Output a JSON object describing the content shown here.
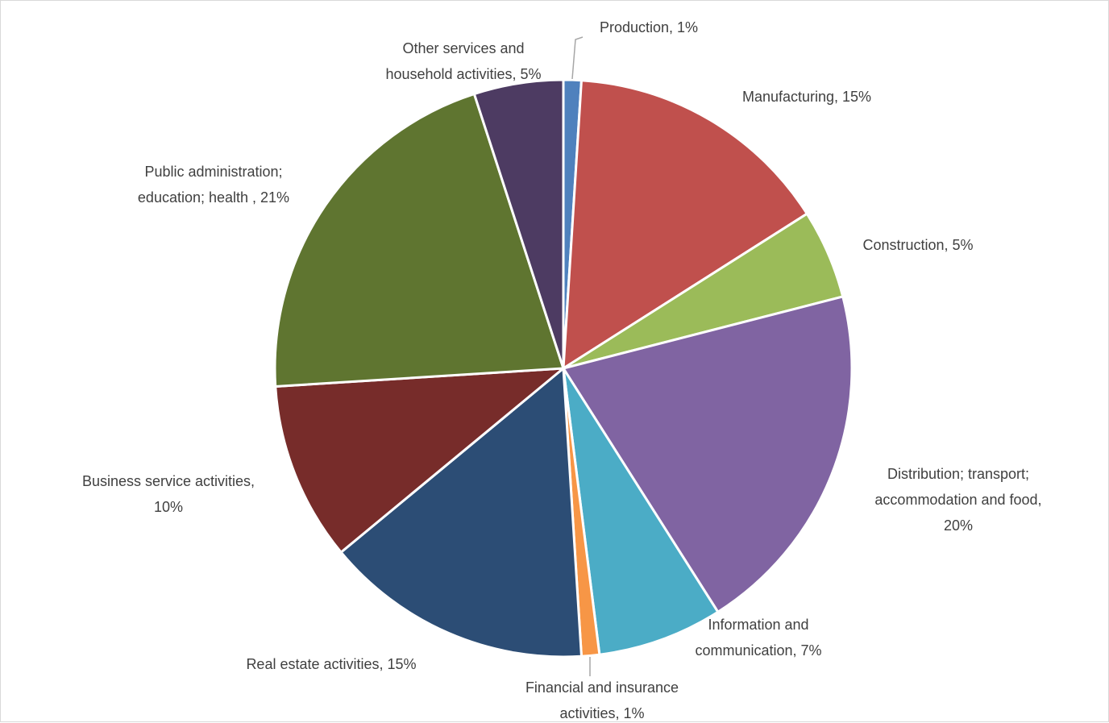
{
  "chart_data": {
    "type": "pie",
    "title": "",
    "data_label_format": "{category}, {percent}",
    "start_angle_deg": 0,
    "direction": "clockwise",
    "slices": [
      {
        "label": "Production, 1%",
        "value": 1,
        "color": "#4f81bd"
      },
      {
        "label": "Manufacturing, 15%",
        "value": 15,
        "color": "#c0504d"
      },
      {
        "label": "Construction, 5%",
        "value": 5,
        "color": "#9bbb59"
      },
      {
        "label": "Distribution; transport;\naccommodation and food,\n20%",
        "value": 20,
        "color": "#8064a2"
      },
      {
        "label": "Information and\ncommunication, 7%",
        "value": 7,
        "color": "#4bacc6"
      },
      {
        "label": "Financial and insurance\nactivities, 1%",
        "value": 1,
        "color": "#f79646"
      },
      {
        "label": "Real estate activities, 15%",
        "value": 15,
        "color": "#2c4d75"
      },
      {
        "label": "Business service activities,\n10%",
        "value": 10,
        "color": "#772c2a"
      },
      {
        "label": "Public administration;\neducation; health , 21%",
        "value": 21,
        "color": "#5f7530"
      },
      {
        "label": "Other services and\nhousehold activities, 5%",
        "value": 5,
        "color": "#4d3b62"
      }
    ]
  }
}
